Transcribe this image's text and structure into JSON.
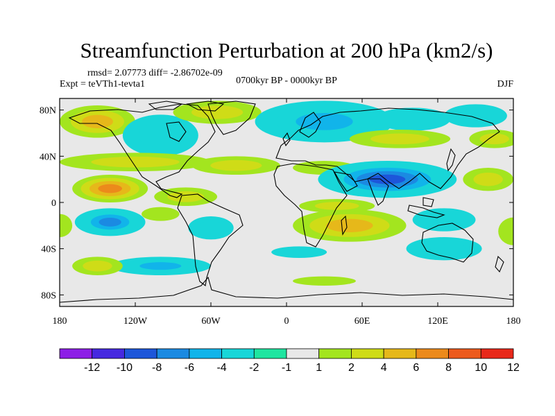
{
  "chart_data": {
    "type": "heatmap",
    "title": "Streamfunction Perturbation at 200 hPa (km2/s)",
    "rmsd_text": "rmsd= 2.07773 diff= -2.86702e-09",
    "expt_text": "Expt = teVTh1-tevta1",
    "period_text": "0700kyr BP - 0000kyr BP",
    "season_text": "DJF",
    "x_ticks": [
      "180",
      "120W",
      "60W",
      "0",
      "60E",
      "120E",
      "180"
    ],
    "y_ticks": [
      "80N",
      "40N",
      "0",
      "40S",
      "80S"
    ],
    "x_range": [
      -180,
      180
    ],
    "y_range": [
      -90,
      90
    ],
    "colorbar": {
      "labels": [
        "-12",
        "-10",
        "-8",
        "-6",
        "-4",
        "-2",
        "-1",
        "1",
        "2",
        "4",
        "6",
        "8",
        "10",
        "12"
      ],
      "colors": [
        "#8d1ee6",
        "#4629e0",
        "#1d56da",
        "#1b8ae2",
        "#11b4ea",
        "#18d6d8",
        "#1fe5a0",
        "#e8e8e8",
        "#a3e51f",
        "#cfdc17",
        "#e6b81a",
        "#ec8a1b",
        "#ec5a1d",
        "#e8281a"
      ]
    },
    "anomaly_centers": [
      {
        "lon": -150,
        "lat": 70,
        "value": 5,
        "rlon": 30,
        "rlat": 14
      },
      {
        "lon": -100,
        "lat": 58,
        "value": -3,
        "rlon": 30,
        "rlat": 18
      },
      {
        "lon": -55,
        "lat": 78,
        "value": 2,
        "rlon": 35,
        "rlat": 10
      },
      {
        "lon": 30,
        "lat": 70,
        "value": -5,
        "rlon": 55,
        "rlat": 18
      },
      {
        "lon": 100,
        "lat": 72,
        "value": -3,
        "rlon": 30,
        "rlat": 10
      },
      {
        "lon": 150,
        "lat": 75,
        "value": -3,
        "rlon": 25,
        "rlat": 10
      },
      {
        "lon": 90,
        "lat": 55,
        "value": 2,
        "rlon": 40,
        "rlat": 8
      },
      {
        "lon": -120,
        "lat": 35,
        "value": 2,
        "rlon": 60,
        "rlat": 8
      },
      {
        "lon": -40,
        "lat": 32,
        "value": 2,
        "rlon": 35,
        "rlat": 8
      },
      {
        "lon": 30,
        "lat": 30,
        "value": 1.5,
        "rlon": 25,
        "rlat": 6
      },
      {
        "lon": 80,
        "lat": 20,
        "value": -9,
        "rlon": 55,
        "rlat": 16
      },
      {
        "lon": 160,
        "lat": 20,
        "value": 2,
        "rlon": 20,
        "rlat": 10
      },
      {
        "lon": -140,
        "lat": 12,
        "value": 6,
        "rlon": 30,
        "rlat": 12
      },
      {
        "lon": -80,
        "lat": 5,
        "value": 2,
        "rlon": 25,
        "rlat": 8
      },
      {
        "lon": -140,
        "lat": -17,
        "value": -7,
        "rlon": 28,
        "rlat": 12
      },
      {
        "lon": -100,
        "lat": -10,
        "value": 1.5,
        "rlon": 15,
        "rlat": 6
      },
      {
        "lon": -60,
        "lat": -22,
        "value": -3,
        "rlon": 18,
        "rlat": 10
      },
      {
        "lon": 50,
        "lat": -20,
        "value": 5,
        "rlon": 45,
        "rlat": 14
      },
      {
        "lon": 40,
        "lat": -3,
        "value": 2,
        "rlon": 30,
        "rlat": 6
      },
      {
        "lon": 125,
        "lat": -15,
        "value": -3,
        "rlon": 25,
        "rlat": 10
      },
      {
        "lon": 125,
        "lat": -40,
        "value": -3,
        "rlon": 30,
        "rlat": 10
      },
      {
        "lon": -100,
        "lat": -55,
        "value": -4,
        "rlon": 40,
        "rlat": 8
      },
      {
        "lon": -150,
        "lat": -55,
        "value": 2,
        "rlon": 20,
        "rlat": 8
      },
      {
        "lon": 10,
        "lat": -43,
        "value": -2,
        "rlon": 22,
        "rlat": 5
      },
      {
        "lon": 30,
        "lat": -68,
        "value": 1.5,
        "rlon": 25,
        "rlat": 4
      },
      {
        "lon": -180,
        "lat": -20,
        "value": 1.5,
        "rlon": 10,
        "rlat": 10
      },
      {
        "lon": 180,
        "lat": -25,
        "value": 1.5,
        "rlon": 12,
        "rlat": 12
      },
      {
        "lon": 165,
        "lat": 55,
        "value": 2,
        "rlon": 20,
        "rlat": 8
      }
    ]
  }
}
